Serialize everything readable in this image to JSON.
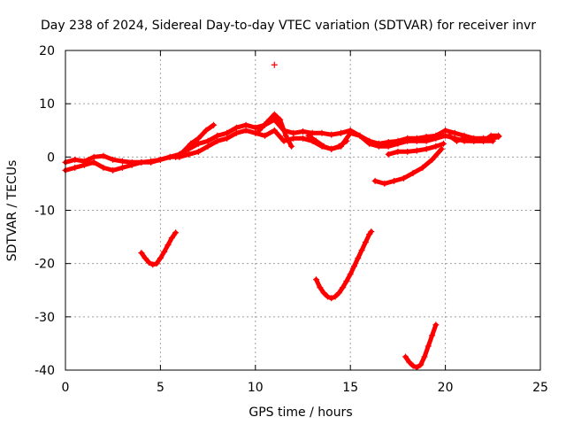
{
  "chart_data": {
    "type": "scatter",
    "title": "Day 238 of 2024, Sidereal Day-to-day VTEC variation (SDTVAR) for receiver invr",
    "xlabel": "GPS time / hours",
    "ylabel": "SDTVAR / TECUs",
    "xlim": [
      0,
      25
    ],
    "ylim": [
      -40,
      20
    ],
    "xticks": [
      0,
      5,
      10,
      15,
      20,
      25
    ],
    "yticks": [
      -40,
      -30,
      -20,
      -10,
      0,
      10,
      20
    ],
    "grid": true,
    "marker": "+",
    "color": "#ff0000",
    "series": [
      {
        "name": "main-band-upper",
        "x": [
          0.0,
          0.5,
          1.0,
          1.5,
          2.0,
          2.5,
          3.0,
          3.5,
          4.0,
          4.5,
          5.0,
          5.5,
          6.0,
          6.5,
          7.0,
          7.5,
          8.0,
          8.5,
          9.0,
          9.5,
          10.0,
          10.5,
          11.0,
          11.5,
          12.0,
          12.5,
          13.0,
          13.5,
          14.0,
          14.5,
          15.0,
          15.5,
          16.0,
          16.5,
          17.0,
          17.5,
          18.0,
          18.5,
          19.0,
          19.5,
          20.0,
          20.5,
          21.0,
          21.5,
          22.0,
          22.5,
          22.8
        ],
        "y": [
          -1.0,
          -0.5,
          -0.8,
          0.0,
          0.2,
          -0.5,
          -0.8,
          -1.0,
          -1.0,
          -0.8,
          -0.5,
          0.0,
          0.5,
          1.5,
          2.5,
          3.0,
          4.0,
          4.5,
          5.5,
          6.0,
          5.5,
          6.0,
          7.0,
          5.0,
          4.5,
          4.8,
          4.5,
          4.5,
          4.2,
          4.5,
          5.0,
          4.0,
          3.0,
          2.5,
          2.8,
          3.0,
          3.5,
          3.5,
          3.8,
          4.0,
          5.0,
          4.5,
          4.0,
          3.5,
          3.5,
          3.5,
          3.8
        ]
      },
      {
        "name": "main-band-lower",
        "x": [
          0.0,
          0.5,
          1.0,
          1.5,
          2.0,
          2.5,
          3.0,
          3.5,
          4.0,
          4.5,
          5.0,
          5.5,
          6.0,
          6.5,
          7.0,
          7.5,
          8.0,
          8.5,
          9.0,
          9.5,
          10.0,
          10.5,
          11.0,
          11.5,
          12.0,
          12.5,
          13.0,
          13.5,
          14.0,
          14.5,
          15.0,
          15.5,
          16.0,
          16.5,
          17.0,
          17.5,
          18.0,
          18.5,
          19.0,
          19.5,
          20.0,
          20.5,
          21.0,
          21.5,
          22.0,
          22.5
        ],
        "y": [
          -2.5,
          -2.0,
          -1.5,
          -1.0,
          -2.0,
          -2.5,
          -2.0,
          -1.5,
          -1.0,
          -1.0,
          -0.5,
          0.0,
          0.0,
          0.5,
          1.0,
          2.0,
          3.0,
          3.5,
          4.5,
          5.0,
          4.5,
          4.0,
          5.0,
          3.0,
          3.5,
          3.5,
          3.0,
          2.0,
          1.5,
          2.0,
          4.5,
          4.0,
          2.5,
          2.0,
          2.0,
          2.5,
          3.0,
          3.0,
          3.0,
          3.5,
          4.0,
          3.5,
          3.0,
          3.0,
          3.0,
          3.0
        ]
      },
      {
        "name": "steep-rise",
        "x": [
          5.8,
          6.2,
          6.6,
          7.0,
          7.4,
          7.8
        ],
        "y": [
          0.0,
          1.0,
          2.5,
          3.5,
          5.0,
          6.0
        ]
      },
      {
        "name": "spike-11h",
        "x": [
          10.2,
          10.6,
          11.0,
          11.3,
          11.6,
          11.9
        ],
        "y": [
          5.0,
          6.5,
          8.0,
          7.0,
          4.0,
          2.0
        ]
      },
      {
        "name": "arc-13-15",
        "x": [
          12.8,
          13.2,
          13.6,
          14.0,
          14.4,
          14.8
        ],
        "y": [
          4.0,
          3.0,
          2.0,
          1.5,
          2.0,
          3.0
        ]
      },
      {
        "name": "arc-17-19",
        "x": [
          17.0,
          17.5,
          18.0,
          18.5,
          19.0,
          19.5,
          19.9
        ],
        "y": [
          0.5,
          1.0,
          1.0,
          1.2,
          1.5,
          2.0,
          2.5
        ]
      },
      {
        "name": "drop-16-19",
        "x": [
          16.3,
          16.8,
          17.3,
          17.8,
          18.3,
          18.8,
          19.3,
          19.8
        ],
        "y": [
          -4.5,
          -5.0,
          -4.5,
          -4.0,
          -3.0,
          -2.0,
          -0.5,
          1.5
        ]
      },
      {
        "name": "late-cluster",
        "x": [
          20.2,
          20.6,
          21.0,
          21.5,
          22.0,
          22.4,
          22.8
        ],
        "y": [
          4.0,
          3.0,
          3.5,
          3.0,
          3.0,
          4.0,
          4.0
        ]
      },
      {
        "name": "dip-4-6",
        "x": [
          4.0,
          4.2,
          4.4,
          4.6,
          4.8,
          5.0,
          5.2,
          5.4,
          5.6,
          5.8
        ],
        "y": [
          -18.0,
          -19.0,
          -19.8,
          -20.2,
          -20.0,
          -19.0,
          -17.8,
          -16.5,
          -15.2,
          -14.2
        ]
      },
      {
        "name": "dip-13-16",
        "x": [
          13.2,
          13.4,
          13.6,
          13.8,
          14.0,
          14.2,
          14.4,
          14.6,
          14.8,
          15.0,
          15.2,
          15.4,
          15.6,
          15.8,
          16.0,
          16.1
        ],
        "y": [
          -23.0,
          -24.5,
          -25.5,
          -26.2,
          -26.5,
          -26.2,
          -25.5,
          -24.5,
          -23.3,
          -22.0,
          -20.5,
          -19.0,
          -17.5,
          -16.0,
          -14.5,
          -14.0
        ]
      },
      {
        "name": "dip-18-20",
        "x": [
          17.9,
          18.1,
          18.3,
          18.5,
          18.7,
          18.9,
          19.1,
          19.3,
          19.5
        ],
        "y": [
          -37.5,
          -38.5,
          -39.2,
          -39.5,
          -39.0,
          -37.5,
          -35.5,
          -33.5,
          -31.5
        ]
      },
      {
        "name": "outlier",
        "x": [
          11.0
        ],
        "y": [
          17.3
        ]
      }
    ]
  }
}
